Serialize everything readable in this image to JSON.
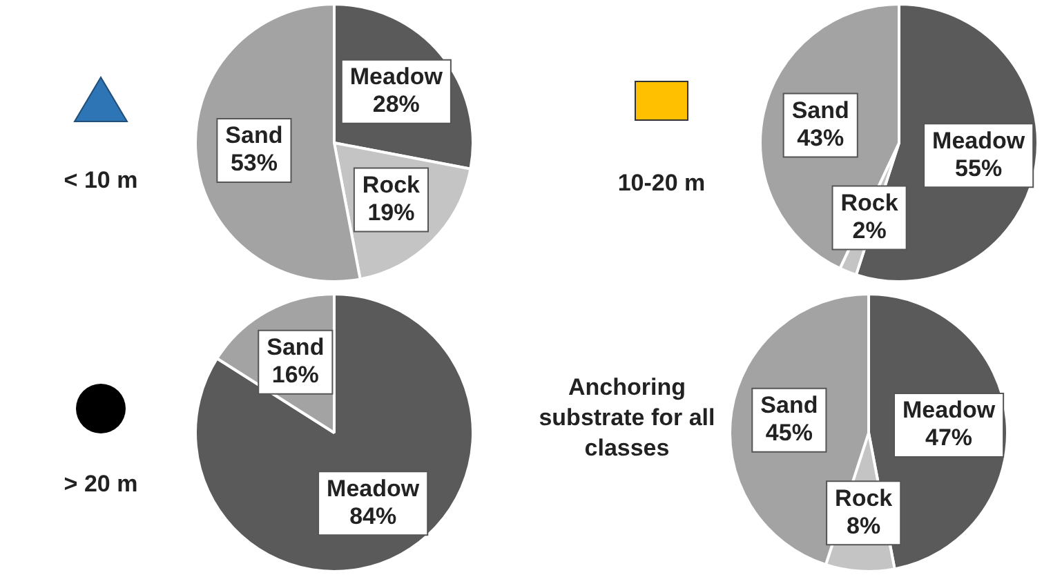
{
  "chart_data": [
    {
      "type": "pie",
      "title": "< 10 m",
      "categories": [
        "Meadow",
        "Rock",
        "Sand"
      ],
      "values": [
        28,
        19,
        53
      ],
      "value_labels": [
        "28%",
        "19%",
        "53%"
      ],
      "colors": [
        "#5a5a5a",
        "#c4c4c4",
        "#a3a3a3"
      ]
    },
    {
      "type": "pie",
      "title": "10-20 m",
      "categories": [
        "Meadow",
        "Rock",
        "Sand"
      ],
      "values": [
        55,
        2,
        43
      ],
      "value_labels": [
        "55%",
        "2%",
        "43%"
      ],
      "colors": [
        "#5a5a5a",
        "#c4c4c4",
        "#a3a3a3"
      ]
    },
    {
      "type": "pie",
      "title": "> 20 m",
      "categories": [
        "Meadow",
        "Sand"
      ],
      "values": [
        84,
        16
      ],
      "value_labels": [
        "84%",
        "16%"
      ],
      "colors": [
        "#5a5a5a",
        "#a3a3a3"
      ]
    },
    {
      "type": "pie",
      "title": "Anchoring substrate for all classes",
      "categories": [
        "Meadow",
        "Rock",
        "Sand"
      ],
      "values": [
        47,
        8,
        45
      ],
      "value_labels": [
        "47%",
        "8%",
        "45%"
      ],
      "colors": [
        "#5a5a5a",
        "#c4c4c4",
        "#a3a3a3"
      ]
    }
  ]
}
